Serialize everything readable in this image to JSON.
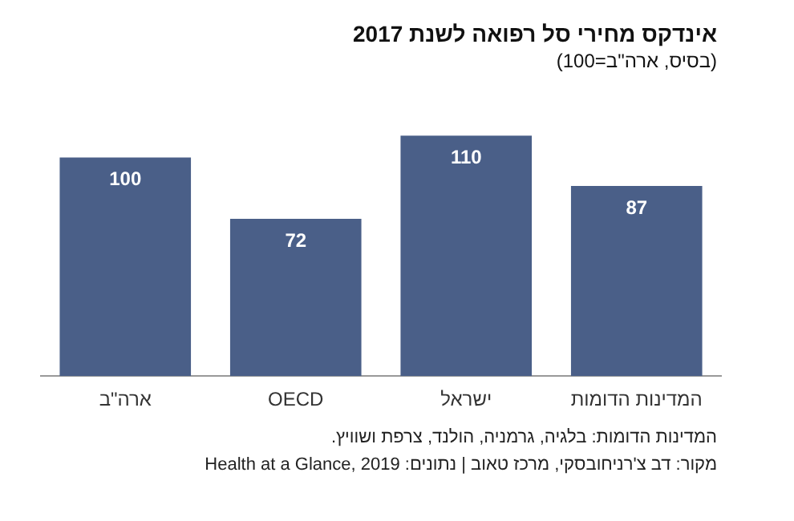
{
  "chart_data": {
    "type": "bar",
    "title": "אינדקס מחירי סל רפואה לשנת 2017",
    "subtitle": "(בסיס, ארה\"ב=100)",
    "categories": [
      "ארה\"ב",
      "OECD",
      "ישראל",
      "המדינות הדומות"
    ],
    "values": [
      100,
      72,
      110,
      87
    ],
    "color": "#4a5f88",
    "data_labels": true,
    "grid": false,
    "legend": false,
    "annotations": [
      "המדינות הדומות: בלגיה, גרמניה, הולנד, צרפת ושוויץ.",
      "מקור: דב צ'רניחובסקי, מרכז טאוב | נתונים: Health at a Glance, 2019"
    ]
  }
}
